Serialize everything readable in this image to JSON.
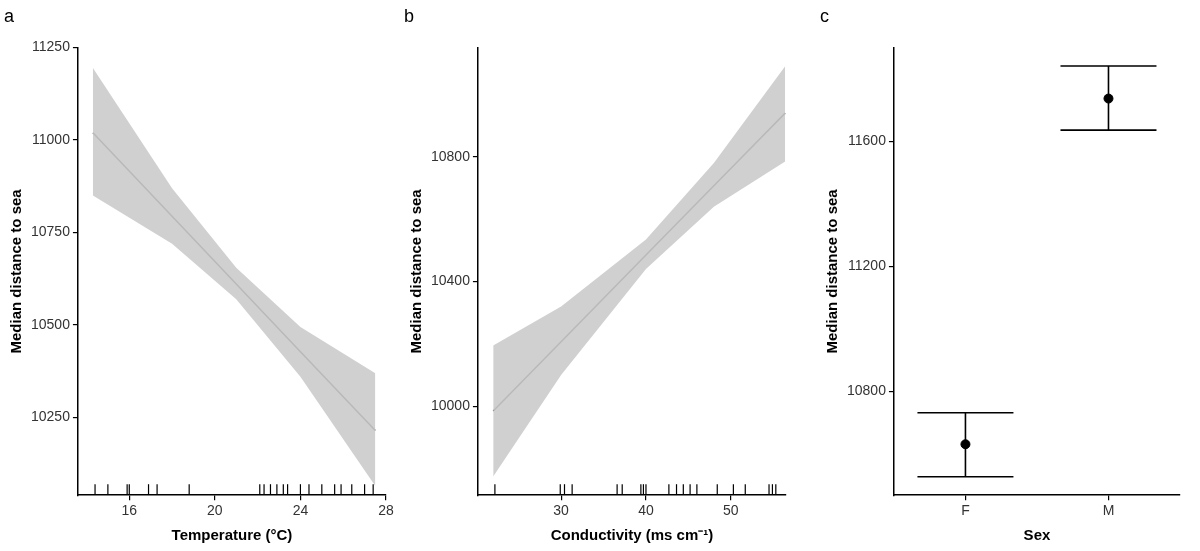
{
  "chart_data": [
    {
      "type": "line",
      "title": "a",
      "x_label": "Temperature (°C)",
      "y_label": "Median distance to sea",
      "x": [
        14.3,
        18,
        21,
        24,
        27.5
      ],
      "values": [
        11020,
        10794,
        10611,
        10428,
        10215
      ],
      "ci_lower": [
        10850,
        10720,
        10570,
        10360,
        10065
      ],
      "ci_upper": [
        11195,
        10870,
        10655,
        10495,
        10370
      ],
      "rug": [
        14.4,
        15,
        15.9,
        16,
        16.9,
        17.3,
        18.8,
        22.1,
        22.3,
        22.6,
        22.9,
        23.2,
        23.4,
        24,
        24.4,
        25,
        25.6,
        25.9,
        26.4,
        27,
        27.4
      ],
      "xlim": [
        13.6,
        28
      ],
      "xticks": [
        16,
        20,
        24,
        28
      ],
      "ylim": [
        10040,
        11250
      ],
      "yticks": [
        10250,
        10500,
        10750,
        11000,
        11250
      ],
      "color": "#666666",
      "grid": false
    },
    {
      "type": "line",
      "title": "b",
      "x_label": "Conductivity (ms cm⁻¹)",
      "y_label": "Median distance to sea",
      "x": [
        22,
        30,
        40,
        48,
        56.4
      ],
      "values": [
        9985,
        10207,
        10485,
        10707,
        10940
      ],
      "ci_lower": [
        9775,
        10100,
        10440,
        10640,
        10785
      ],
      "ci_upper": [
        10195,
        10320,
        10535,
        10780,
        11090
      ],
      "rug": [
        22.2,
        29.9,
        30.4,
        31.3,
        36.6,
        37.2,
        39.4,
        39.7,
        40,
        42.7,
        43.6,
        44.4,
        45.2,
        46,
        48.4,
        50.3,
        51.7,
        54.5,
        54.9,
        55.3
      ],
      "xlim": [
        20.2,
        56.5
      ],
      "xticks": [
        30,
        40,
        50
      ],
      "ylim": [
        9715,
        11150
      ],
      "yticks": [
        10000,
        10400,
        10800
      ],
      "color": "#666666",
      "grid": false
    },
    {
      "type": "point",
      "title": "c",
      "x_label": "Sex",
      "y_label": "Median distance to sea",
      "categories": [
        "F",
        "M"
      ],
      "values": [
        10631,
        11737
      ],
      "error_lower": [
        10527,
        11636
      ],
      "error_upper": [
        10732,
        11841
      ],
      "ylim": [
        10468,
        11900
      ],
      "yticks": [
        10800,
        11200,
        11600
      ],
      "color": "#000000",
      "grid": false
    }
  ]
}
